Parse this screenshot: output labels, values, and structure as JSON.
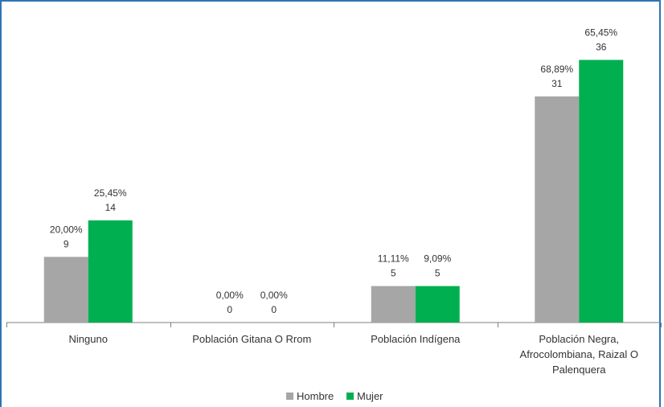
{
  "chart_data": {
    "type": "bar",
    "categories": [
      [
        "Ninguno"
      ],
      [
        "Población Gitana O Rrom"
      ],
      [
        "Población Indígena"
      ],
      [
        "Población Negra,",
        "Afrocolombiana, Raizal O",
        "Palenquera"
      ]
    ],
    "series": [
      {
        "name": "Hombre",
        "color": "#a6a6a6",
        "values": [
          9,
          0,
          5,
          31
        ],
        "percent_labels": [
          "20,00%",
          "0,00%",
          "11,11%",
          "68,89%"
        ]
      },
      {
        "name": "Mujer",
        "color": "#00b050",
        "values": [
          14,
          0,
          5,
          36
        ],
        "percent_labels": [
          "25,45%",
          "0,00%",
          "9,09%",
          "65,45%"
        ]
      }
    ],
    "ylim": [
      0,
      40
    ],
    "grid": false,
    "legend_position": "bottom"
  }
}
